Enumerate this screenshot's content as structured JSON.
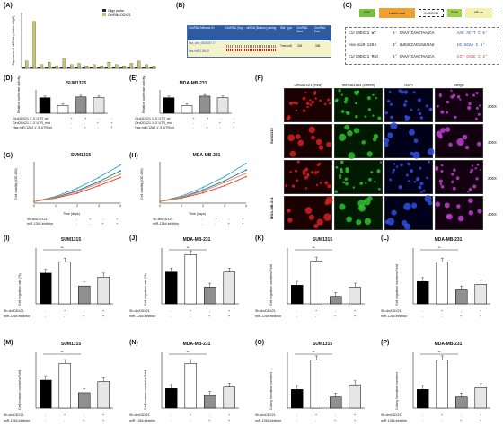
{
  "panels": {
    "A": {
      "label": "(A)",
      "ylabel": "Expression of miRNAs\n(relative to IgG)",
      "legend": [
        "Oligo probe",
        "CircRNA DDX21"
      ],
      "legend_colors": [
        "#1f2a44",
        "#c9c36a"
      ]
    },
    "B": {
      "label": "(B)",
      "headers": [
        "CircRNA\nMirbase ID",
        "CircRNA (Top) - miRNA (Bottom) pairing",
        "Site Type",
        "CircRNA Start",
        "CircRNA End"
      ],
      "row": {
        "id1": "hsa_circ_0006037 3'",
        "id2": "hsa-miR-1264 5'",
        "site": "7mer-m8",
        "start": "326",
        "end": "338"
      }
    },
    "C": {
      "label": "(C)",
      "construct": [
        "PGK",
        "Luciferase",
        "CircDDX21",
        "SV40",
        "hRLuc"
      ],
      "rows": [
        {
          "name": "CircDDX21 WT",
          "seq5": "5' CAAATCAAGTAAGCA",
          "tail": "AAG ACTT C 5'"
        },
        {
          "name": "Hsa-miR-1264",
          "seq5": "3' UUGUCCACGAUUUAU",
          "tail": "UC UGAA C 5'"
        },
        {
          "name": "CircDDX21 Mut",
          "seq5": "5' CAAATCAAGTAAGCA",
          "tail": "CCT CAGC C 3'"
        }
      ]
    },
    "D": {
      "label": "(D)",
      "title": "SUM1315",
      "ylabel": "Relative luciferase activity",
      "rows": [
        "CircDDX21 1'-3' UTR_wt",
        "CircDDX21 1'-3' UTR_mut",
        "Hsa-miR-1264 1'-3' UTR/wt"
      ]
    },
    "E": {
      "label": "(E)",
      "title": "MDA-MB-231",
      "ylabel": "Relative luciferase activity",
      "rows": [
        "CircDDX21 1'-3' UTR_wt",
        "CircDDX21 1'-3' UTR_mut",
        "Hsa-miR-1264 1'-3' UTR/wt"
      ]
    },
    "F": {
      "label": "(F)",
      "cols": [
        "CircDDX21 (Red)",
        "miRNA1264 (Green)",
        "DAPI",
        "Merge"
      ],
      "rows": [
        "SUM1315",
        "MDA-MB-231"
      ],
      "mags": [
        "200X",
        "400X",
        "200X",
        "400X"
      ]
    },
    "G": {
      "label": "(G)",
      "title": "SUM1315",
      "ylabel": "Cell viability (OD 450)",
      "xlabel": "Time (days)",
      "rows": [
        "Sh-circDDX21",
        "miR-1264 inhibitor"
      ]
    },
    "H": {
      "label": "(H)",
      "title": "MDA-MB-231",
      "ylabel": "Cell viability (OD 450)",
      "xlabel": "Time (days)",
      "rows": [
        "Sh-circDDX21",
        "miR-1264 inhibitor"
      ]
    },
    "I": {
      "label": "(I)",
      "title": "SUM1315",
      "ylabel": "Cell migration rate (%)"
    },
    "J": {
      "label": "(J)",
      "title": "MDA-MB-231",
      "ylabel": "Cell migration rate (%)"
    },
    "K": {
      "label": "(K)",
      "title": "SUM1315",
      "ylabel": "Cell migration numbers/Field"
    },
    "L": {
      "label": "(L)",
      "title": "MDA-MB-231",
      "ylabel": "Cell migration numbers/Field"
    },
    "M": {
      "label": "(M)",
      "title": "SUM1315",
      "ylabel": "Cell invasion numbers/Field"
    },
    "N": {
      "label": "(N)",
      "title": "MDA-MB-231",
      "ylabel": "Cell invasion numbers/Field"
    },
    "O": {
      "label": "(O)",
      "title": "SUM1315",
      "ylabel": "Colony formation numbers"
    },
    "P": {
      "label": "(P)",
      "title": "MDA-MB-231",
      "ylabel": "Colony formation numbers"
    }
  },
  "rowlabels": {
    "sh": "Sh-circDDX21",
    "inh": "miR-1264 inhibitor"
  },
  "signs": {
    "sh": [
      "-",
      "+",
      "-",
      "+"
    ],
    "inh": [
      "-",
      "-",
      "+",
      "+"
    ],
    "luc_wt": [
      "+",
      "+",
      "-",
      "-"
    ],
    "luc_mut": [
      "-",
      "-",
      "+",
      "+"
    ],
    "luc_mir": [
      "-",
      "+",
      "-",
      "+"
    ]
  },
  "chart_data": [
    {
      "panel": "A",
      "type": "bar",
      "series": [
        {
          "name": "Oligo probe",
          "values": [
            1,
            1,
            1,
            1,
            1,
            1,
            1,
            1,
            1,
            1,
            1,
            1,
            1,
            1,
            1,
            1,
            1,
            1
          ]
        },
        {
          "name": "CircRNA DDX21",
          "values": [
            6,
            38,
            3,
            5,
            2,
            8,
            3,
            4,
            2,
            3,
            2,
            5,
            3,
            2,
            4,
            6,
            3,
            2
          ]
        }
      ],
      "ylim": [
        0,
        45
      ]
    },
    {
      "panel": "D",
      "type": "bar",
      "values": [
        1.0,
        0.5,
        1.05,
        1.0
      ],
      "ylim": [
        0,
        1.5
      ]
    },
    {
      "panel": "E",
      "type": "bar",
      "values": [
        1.0,
        0.5,
        1.1,
        1.0
      ],
      "ylim": [
        0,
        1.5
      ]
    },
    {
      "panel": "G",
      "type": "line",
      "x": [
        0,
        1,
        2,
        3,
        4
      ],
      "series": [
        {
          "values": [
            0.1,
            0.35,
            0.75,
            1.3,
            1.95
          ],
          "color": "#1f77b4"
        },
        {
          "values": [
            0.1,
            0.3,
            0.6,
            1.05,
            1.55
          ],
          "color": "#e04040"
        },
        {
          "values": [
            0.1,
            0.4,
            0.9,
            1.55,
            2.3
          ],
          "color": "#30a0d0"
        },
        {
          "values": [
            0.1,
            0.32,
            0.7,
            1.2,
            1.75
          ],
          "color": "#f08030"
        }
      ],
      "ylim": [
        0,
        2.5
      ]
    },
    {
      "panel": "H",
      "type": "line",
      "x": [
        0,
        1,
        2,
        3,
        4
      ],
      "series": [
        {
          "values": [
            0.1,
            0.35,
            0.8,
            1.35,
            2.0
          ],
          "color": "#1f77b4"
        },
        {
          "values": [
            0.1,
            0.3,
            0.62,
            1.05,
            1.6
          ],
          "color": "#e04040"
        },
        {
          "values": [
            0.1,
            0.42,
            0.95,
            1.6,
            2.4
          ],
          "color": "#30a0d0"
        },
        {
          "values": [
            0.1,
            0.33,
            0.72,
            1.25,
            1.8
          ],
          "color": "#f08030"
        }
      ],
      "ylim": [
        0,
        2.5
      ]
    },
    {
      "panel": "I",
      "type": "bar",
      "values": [
        55,
        75,
        32,
        48
      ],
      "ylim": [
        0,
        100
      ]
    },
    {
      "panel": "J",
      "type": "bar",
      "values": [
        57,
        88,
        30,
        57
      ],
      "ylim": [
        0,
        100
      ]
    },
    {
      "panel": "K",
      "type": "bar",
      "values": [
        100,
        230,
        40,
        90
      ],
      "ylim": [
        0,
        300
      ]
    },
    {
      "panel": "L",
      "type": "bar",
      "values": [
        80,
        150,
        50,
        70
      ],
      "ylim": [
        0,
        200
      ]
    },
    {
      "panel": "M",
      "type": "bar",
      "values": [
        100,
        160,
        55,
        95
      ],
      "ylim": [
        0,
        200
      ]
    },
    {
      "panel": "N",
      "type": "bar",
      "values": [
        70,
        160,
        45,
        75
      ],
      "ylim": [
        0,
        200
      ]
    },
    {
      "panel": "O",
      "type": "bar",
      "values": [
        200,
        520,
        120,
        250
      ],
      "ylim": [
        0,
        600
      ]
    },
    {
      "panel": "P",
      "type": "bar",
      "values": [
        100,
        260,
        60,
        110
      ],
      "ylim": [
        0,
        300
      ]
    }
  ]
}
